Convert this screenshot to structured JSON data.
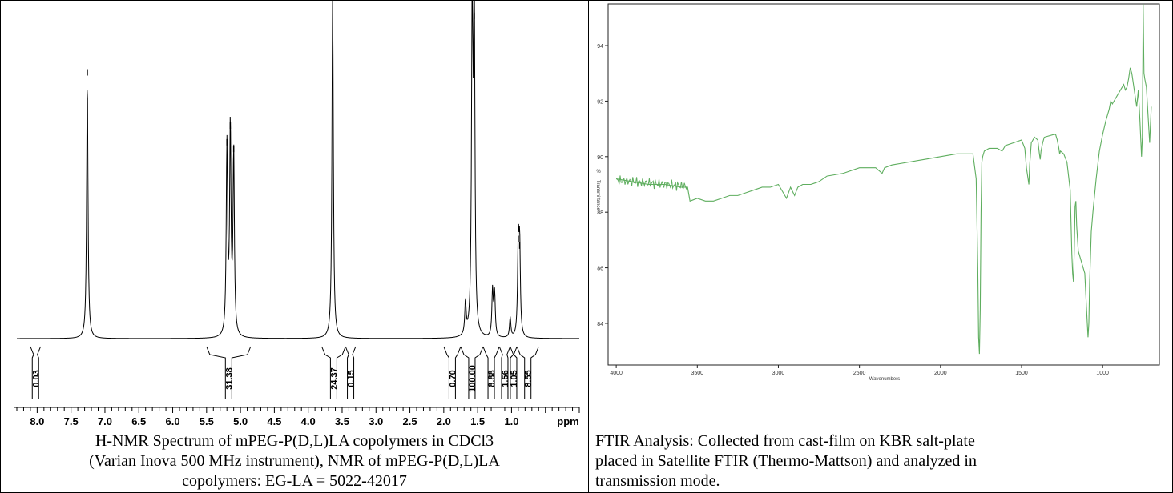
{
  "nmr": {
    "caption_lines": [
      "H-NMR Spectrum of mPEG-P(D,L)LA copolymers in CDCl3",
      "(Varian Inova 500 MHz instrument), NMR of mPEG-P(D,L)LA",
      "copolymers: EG-LA = 5022-42017"
    ]
  },
  "ftir": {
    "caption_lines": [
      "FTIR Analysis: Collected from cast-film on KBR salt-plate",
      "placed in Satellite FTIR (Thermo-Mattson) and analyzed in",
      "transmission mode."
    ]
  },
  "chart_data": [
    {
      "type": "line",
      "title": "",
      "xlabel": "ppm",
      "ylabel": "",
      "xlim": [
        8.3,
        0.0
      ],
      "x_reversed": true,
      "x_ticks": [
        "8.0",
        "7.5",
        "7.0",
        "6.5",
        "6.0",
        "5.5",
        "5.0",
        "4.5",
        "4.0",
        "3.5",
        "3.0",
        "2.5",
        "2.0",
        "1.5",
        "1.0"
      ],
      "peaks": [
        {
          "ppm": 7.26,
          "height": 0.78
        },
        {
          "ppm": 5.2,
          "height": 0.57
        },
        {
          "ppm": 5.15,
          "height": 0.62
        },
        {
          "ppm": 5.1,
          "height": 0.55
        },
        {
          "ppm": 3.64,
          "height": 1.05
        },
        {
          "ppm": 1.68,
          "height": 0.1
        },
        {
          "ppm": 1.58,
          "height": 1.05
        },
        {
          "ppm": 1.55,
          "height": 0.95
        },
        {
          "ppm": 1.28,
          "height": 0.14
        },
        {
          "ppm": 1.25,
          "height": 0.13
        },
        {
          "ppm": 1.02,
          "height": 0.06
        },
        {
          "ppm": 0.9,
          "height": 0.28
        },
        {
          "ppm": 0.88,
          "height": 0.26
        }
      ],
      "integrals": [
        {
          "from": 8.1,
          "to": 7.95,
          "value": "0.03"
        },
        {
          "from": 5.5,
          "to": 4.85,
          "value": "31.38"
        },
        {
          "from": 3.8,
          "to": 3.45,
          "value": "24.37"
        },
        {
          "from": 3.45,
          "to": 3.3,
          "value": "0.15"
        },
        {
          "from": 2.0,
          "to": 1.75,
          "value": "0.70"
        },
        {
          "from": 1.75,
          "to": 1.42,
          "value": "100.00"
        },
        {
          "from": 1.42,
          "to": 1.18,
          "value": "8.88"
        },
        {
          "from": 1.18,
          "to": 1.02,
          "value": "1.56"
        },
        {
          "from": 1.02,
          "to": 0.92,
          "value": "1.05"
        },
        {
          "from": 0.92,
          "to": 0.6,
          "value": "8.55"
        }
      ]
    },
    {
      "type": "line",
      "title": "",
      "xlabel": "Wavenumbers",
      "ylabel": "%Transmittance",
      "xlim": [
        4050,
        650
      ],
      "x_reversed": true,
      "ylim": [
        82.5,
        95.5
      ],
      "x_ticks": [
        4000,
        3500,
        3000,
        2500,
        2000,
        1500,
        1000
      ],
      "y_ticks": [
        84,
        86,
        88,
        90,
        92,
        94
      ],
      "color": "#5fae5f",
      "series": [
        {
          "x": [
            4000,
            3900,
            3800,
            3700,
            3600,
            3560,
            3545,
            3500,
            3450,
            3400,
            3350,
            3300,
            3250,
            3200,
            3150,
            3100,
            3050,
            3000,
            2970,
            2950,
            2925,
            2900,
            2880,
            2850,
            2800,
            2750,
            2700,
            2600,
            2500,
            2400,
            2380,
            2360,
            2345,
            2300,
            2200,
            2100,
            2000,
            1900,
            1800,
            1780,
            1770,
            1765,
            1760,
            1755,
            1750,
            1745,
            1740,
            1730,
            1700,
            1650,
            1620,
            1600,
            1550,
            1500,
            1480,
            1470,
            1460,
            1455,
            1450,
            1440,
            1420,
            1400,
            1390,
            1385,
            1380,
            1370,
            1360,
            1300,
            1290,
            1280,
            1270,
            1265,
            1260,
            1240,
            1220,
            1200,
            1190,
            1185,
            1180,
            1175,
            1170,
            1165,
            1160,
            1150,
            1140,
            1130,
            1120,
            1110,
            1100,
            1090,
            1085,
            1080,
            1070,
            1060,
            1050,
            1040,
            1020,
            1000,
            980,
            960,
            950,
            940,
            900,
            870,
            860,
            850,
            840,
            830,
            820,
            800,
            790,
            780,
            770,
            760,
            755,
            750,
            745,
            740,
            730,
            720,
            710,
            700
          ],
          "y": [
            89.2,
            89.1,
            89.0,
            89.0,
            88.9,
            88.9,
            88.4,
            88.5,
            88.4,
            88.4,
            88.5,
            88.6,
            88.6,
            88.7,
            88.8,
            88.9,
            88.9,
            89.0,
            88.7,
            88.5,
            88.9,
            88.6,
            88.9,
            89.0,
            89.0,
            89.1,
            89.3,
            89.4,
            89.6,
            89.6,
            89.5,
            89.4,
            89.6,
            89.7,
            89.8,
            89.9,
            90.0,
            90.1,
            90.1,
            89.2,
            86.0,
            83.5,
            82.9,
            84.5,
            88.0,
            89.8,
            90.0,
            90.2,
            90.3,
            90.3,
            90.2,
            90.4,
            90.5,
            90.6,
            90.3,
            89.6,
            89.2,
            89.0,
            89.7,
            90.5,
            90.7,
            90.6,
            90.1,
            89.9,
            90.2,
            90.5,
            90.7,
            90.8,
            90.8,
            90.6,
            90.3,
            90.1,
            90.2,
            90.1,
            89.8,
            88.8,
            86.5,
            85.8,
            85.5,
            86.6,
            88.2,
            88.4,
            87.5,
            86.6,
            86.4,
            86.2,
            86.0,
            85.8,
            84.6,
            83.5,
            84.0,
            85.5,
            87.3,
            88.0,
            88.6,
            89.2,
            90.2,
            90.8,
            91.3,
            91.7,
            92.0,
            91.9,
            92.3,
            92.6,
            92.4,
            92.5,
            92.8,
            93.2,
            93.0,
            92.2,
            91.8,
            92.4,
            91.3,
            90.0,
            90.7,
            95.5,
            93.0,
            92.8,
            92.5,
            91.5,
            90.5,
            91.8
          ]
        }
      ]
    }
  ]
}
